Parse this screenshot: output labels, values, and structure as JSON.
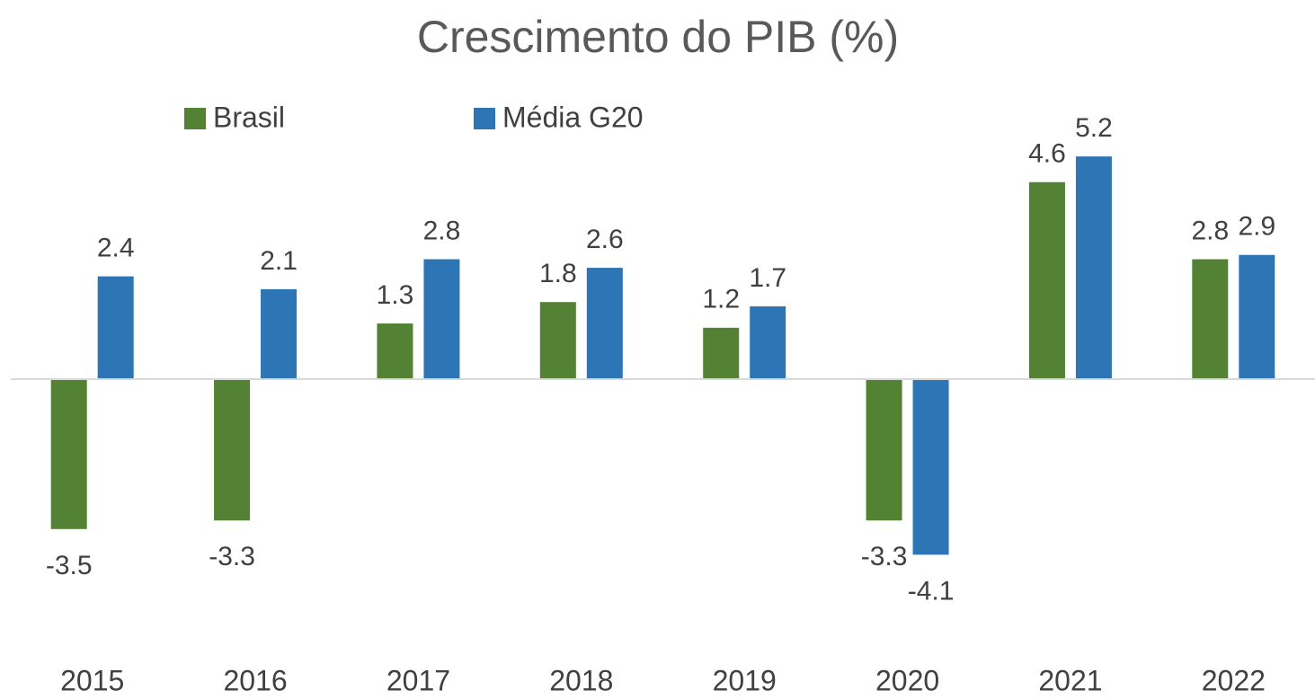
{
  "chart_data": {
    "type": "bar",
    "title": "Crescimento do PIB (%)",
    "categories": [
      "2015",
      "2016",
      "2017",
      "2018",
      "2019",
      "2020",
      "2021",
      "2022"
    ],
    "series": [
      {
        "name": "Brasil",
        "color": "#548235",
        "values": [
          -3.5,
          -3.3,
          1.3,
          1.8,
          1.2,
          -3.3,
          4.6,
          2.8
        ]
      },
      {
        "name": "Média G20",
        "color": "#2e75b6",
        "values": [
          2.4,
          2.1,
          2.8,
          2.6,
          1.7,
          -4.1,
          5.2,
          2.9
        ]
      }
    ],
    "ylim": [
      -6,
      6
    ],
    "legend": "top"
  }
}
